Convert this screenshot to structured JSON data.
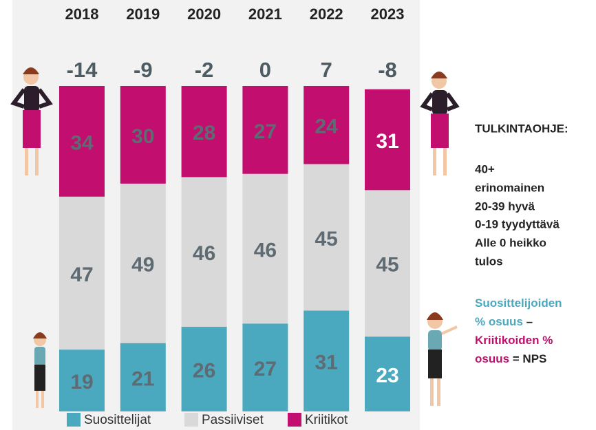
{
  "chart_data": {
    "type": "stacked_bar",
    "categories": [
      "2018",
      "2019",
      "2020",
      "2021",
      "2022",
      "2023"
    ],
    "nps": [
      -14,
      -9,
      -2,
      0,
      7,
      -8
    ],
    "series": [
      {
        "name": "Suosittelijat",
        "color": "#4aa8bf",
        "values": [
          19,
          21,
          26,
          27,
          31,
          23
        ],
        "label_colors": [
          "#5f6b73",
          "#5f6b73",
          "#5f6b73",
          "#5f6b73",
          "#5f6b73",
          "#ffffff"
        ]
      },
      {
        "name": "Passiiviset",
        "color": "#d9d9d9",
        "values": [
          47,
          49,
          46,
          46,
          45,
          45
        ],
        "label_colors": [
          "#5f6b73",
          "#5f6b73",
          "#5f6b73",
          "#5f6b73",
          "#5f6b73",
          "#5f6b73"
        ]
      },
      {
        "name": "Kriitikot",
        "color": "#c20e6e",
        "values": [
          34,
          30,
          28,
          27,
          24,
          31
        ],
        "label_colors": [
          "#5f6b73",
          "#5f6b73",
          "#5f6b73",
          "#5f6b73",
          "#5f6b73",
          "#ffffff"
        ]
      }
    ],
    "ylim": [
      0,
      100
    ]
  },
  "notes": {
    "title": "TULKINTAOHJE:",
    "lines": [
      "40+",
      "erinomainen",
      "20-39 hyvä",
      "0-19 tyydyttävä",
      "Alle 0 heikko",
      "tulos"
    ],
    "formula": [
      [
        {
          "text": "Suosittelijoiden",
          "color": "#4aa8bf"
        }
      ],
      [
        {
          "text": "% osuus",
          "color": "#4aa8bf"
        },
        {
          "text": " –",
          "color": "#222222"
        }
      ],
      [
        {
          "text": "Kriitikoiden %",
          "color": "#c20e6e"
        }
      ],
      [
        {
          "text": "osuus",
          "color": "#c20e6e"
        },
        {
          "text": " = NPS",
          "color": "#222222"
        }
      ]
    ]
  }
}
